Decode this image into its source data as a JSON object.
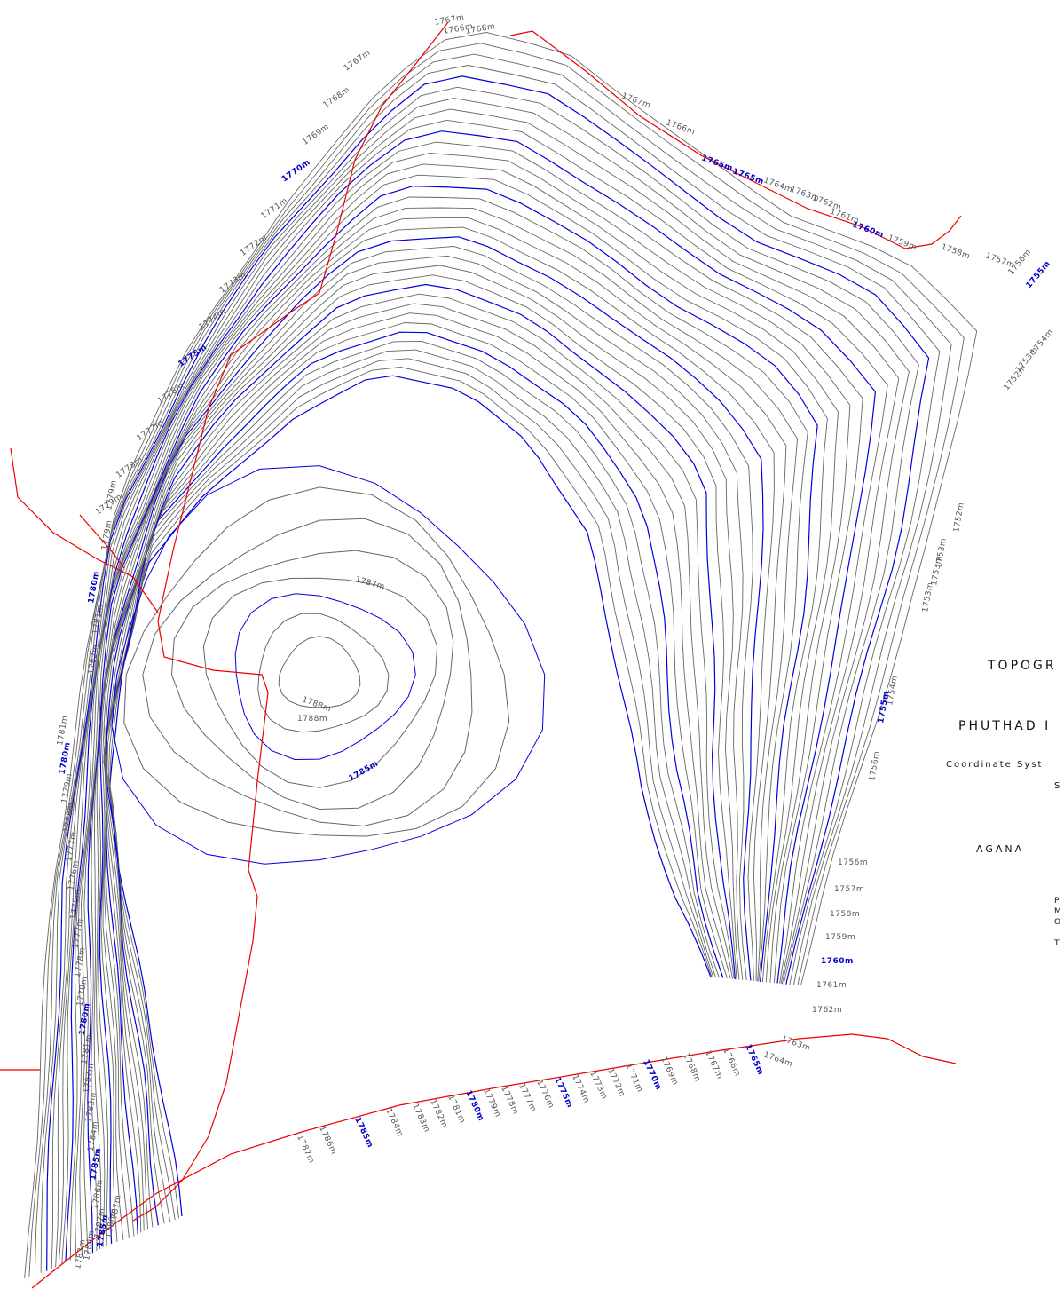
{
  "title_block": {
    "title": "TOPOGR",
    "location": "PHUTHAD I",
    "coordinate_system": "Coordinate Syst",
    "scale": "S",
    "client": "AGANA",
    "meta_lines": [
      "P",
      "M",
      "O",
      "T"
    ]
  },
  "colors": {
    "contour_minor": "#666666",
    "contour_major": "#0000dd",
    "boundary": "#ee0000",
    "label_minor": "#555555",
    "label_major": "#0000cc"
  },
  "peak": {
    "label": "1788m",
    "top_label": "1787m"
  },
  "contour_labels": {
    "top_arc": [
      "1767m",
      "1768m",
      "1769m",
      "1770m",
      "1771m",
      "1772m",
      "1773m",
      "1774m",
      "1775m",
      "1776m",
      "1777m",
      "1778m",
      "1779m"
    ],
    "top_cluster": [
      "1767m",
      "1766m",
      "1768m"
    ],
    "northeast_ridge": [
      "1767m",
      "1766m",
      "1765m",
      "1765m",
      "1764m",
      "1763m",
      "1762m",
      "1761m",
      "1760m",
      "1759m",
      "1758m",
      "1757m",
      "1756m",
      "1755m",
      "1754m",
      "1753m",
      "1752m"
    ],
    "east_slope": [
      "1752m",
      "1753m",
      "1753m",
      "1753m",
      "1754m",
      "1755m",
      "1756m"
    ],
    "east_lower": [
      "1756m",
      "1757m",
      "1758m",
      "1759m",
      "1760m",
      "1761m",
      "1762m",
      "1763m",
      "1764m"
    ],
    "west_upper": [
      "1779m",
      "1779m",
      "1780m",
      "1781m",
      "1782m"
    ],
    "west_lower": [
      "1781m",
      "1780m",
      "1779m",
      "1778m",
      "1777m",
      "1776m",
      "1776m",
      "1777m",
      "1778m",
      "1779m",
      "1780m",
      "1781m",
      "1782m",
      "1783m",
      "1784m",
      "1785m",
      "1786m",
      "1787m"
    ],
    "inner": [
      "1788m",
      "1785m"
    ],
    "bottom_row": [
      "1787m",
      "1786m",
      "1785m",
      "1784m",
      "1783m",
      "1782m",
      "1781m",
      "1780m",
      "1779m",
      "1778m",
      "1777m",
      "1776m",
      "1775m",
      "1774m",
      "1773m",
      "1772m",
      "1771m",
      "1770m",
      "1769m",
      "1768m",
      "1767m",
      "1766m",
      "1765m"
    ],
    "bottom_extra": [
      "1787m",
      "1786m",
      "1785m",
      "1784m",
      "1783m"
    ]
  },
  "major_values": [
    "1755m",
    "1760m",
    "1765m",
    "1770m",
    "1775m",
    "1780m",
    "1785m"
  ]
}
